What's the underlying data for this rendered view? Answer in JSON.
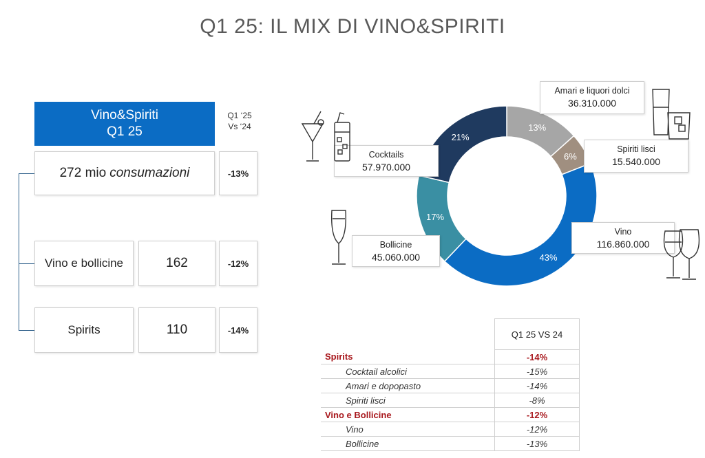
{
  "title": "Q1 25: IL MIX DI VINO&SPIRITI",
  "left_panel": {
    "header_line1": "Vino&Spiriti",
    "header_line2": "Q1 25",
    "col_header_line1": "Q1 ‘25",
    "col_header_line2": "Vs ‘24",
    "total_number": "272 mio ",
    "total_unit": "consumazioni",
    "total_change": "-13%",
    "rows": [
      {
        "label": "Vino e bollicine",
        "value": "162",
        "change": "-12%"
      },
      {
        "label": "Spirits",
        "value": "110",
        "change": "-14%"
      }
    ]
  },
  "chart_data": {
    "type": "pie",
    "donut": true,
    "slices": [
      {
        "name": "Amari e liquori dolci",
        "value": 36310000,
        "value_label": "36.310.000",
        "pct_label": "13%",
        "color": "#a6a6a6"
      },
      {
        "name": "Spiriti lisci",
        "value": 15540000,
        "value_label": "15.540.000",
        "pct_label": "6%",
        "color": "#a08f80"
      },
      {
        "name": "Vino",
        "value": 116860000,
        "value_label": "116.860.000",
        "pct_label": "43%",
        "color": "#0b6cc4"
      },
      {
        "name": "Bollicine",
        "value": 45060000,
        "value_label": "45.060.000",
        "pct_label": "17%",
        "color": "#3a8fa3"
      },
      {
        "name": "Cocktails",
        "value": 57970000,
        "value_label": "57.970.000",
        "pct_label": "21%",
        "color": "#1f3a5f"
      }
    ]
  },
  "table": {
    "col_header": "Q1 25 VS 24",
    "rows": [
      {
        "label": "Spirits",
        "value": "-14%",
        "kind": "grp"
      },
      {
        "label": "Cocktail alcolici",
        "value": "-15%",
        "kind": "sub"
      },
      {
        "label": "Amari e dopopasto",
        "value": "-14%",
        "kind": "sub"
      },
      {
        "label": "Spiriti lisci",
        "value": "-8%",
        "kind": "sub"
      },
      {
        "label": "Vino e Bollicine",
        "value": "-12%",
        "kind": "grp"
      },
      {
        "label": "Vino",
        "value": "-12%",
        "kind": "sub"
      },
      {
        "label": "Bollicine",
        "value": "-13%",
        "kind": "sub"
      }
    ]
  },
  "icons": [
    "cocktail-glasses-icon",
    "liquor-glasses-icon",
    "champagne-flute-icon",
    "wine-glasses-icon"
  ]
}
